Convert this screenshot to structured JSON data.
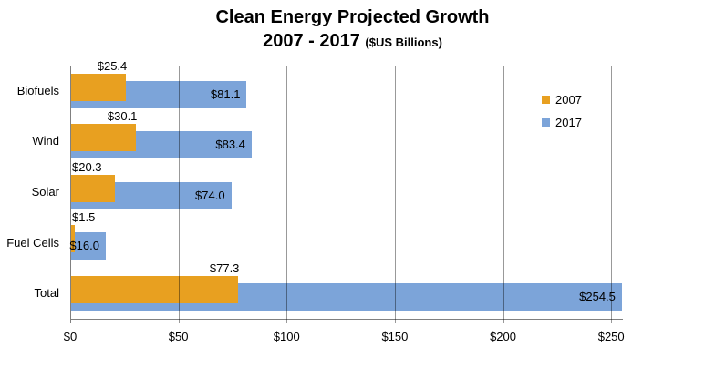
{
  "title": {
    "line1": "Clean Energy Projected Growth",
    "line2": "2007 - 2017",
    "suffix": "($US Billions)"
  },
  "chart_data": {
    "type": "bar",
    "orientation": "horizontal",
    "title": "Clean Energy Projected Growth 2007 - 2017 ($US Billions)",
    "categories": [
      "Biofuels",
      "Wind",
      "Solar",
      "Fuel Cells",
      "Total"
    ],
    "series": [
      {
        "name": "2007",
        "color": "#E8A020",
        "values": [
          25.4,
          30.1,
          20.3,
          1.5,
          77.3
        ],
        "labels": [
          "$25.4",
          "$30.1",
          "$20.3",
          "$1.5",
          "$77.3"
        ],
        "label_position": "above-end"
      },
      {
        "name": "2017",
        "color": "#7CA4D9",
        "values": [
          81.1,
          83.4,
          74.0,
          16.0,
          254.5
        ],
        "labels": [
          "$81.1",
          "$83.4",
          "$74.0",
          "$16.0",
          "$254.5"
        ],
        "label_position": "inside-end"
      }
    ],
    "x_axis": {
      "ticks": [
        {
          "value": 0,
          "label": "$0"
        },
        {
          "value": 50,
          "label": "$50"
        },
        {
          "value": 100,
          "label": "$100"
        },
        {
          "value": 150,
          "label": "$150"
        },
        {
          "value": 200,
          "label": "$200"
        },
        {
          "value": 250,
          "label": "$250"
        }
      ],
      "max": 255.5
    },
    "legend": {
      "position": "right",
      "items": [
        "2007",
        "2017"
      ]
    },
    "grid": true,
    "colors": {
      "grid": "#999999",
      "axis": "#808080",
      "text": "#000000"
    }
  }
}
